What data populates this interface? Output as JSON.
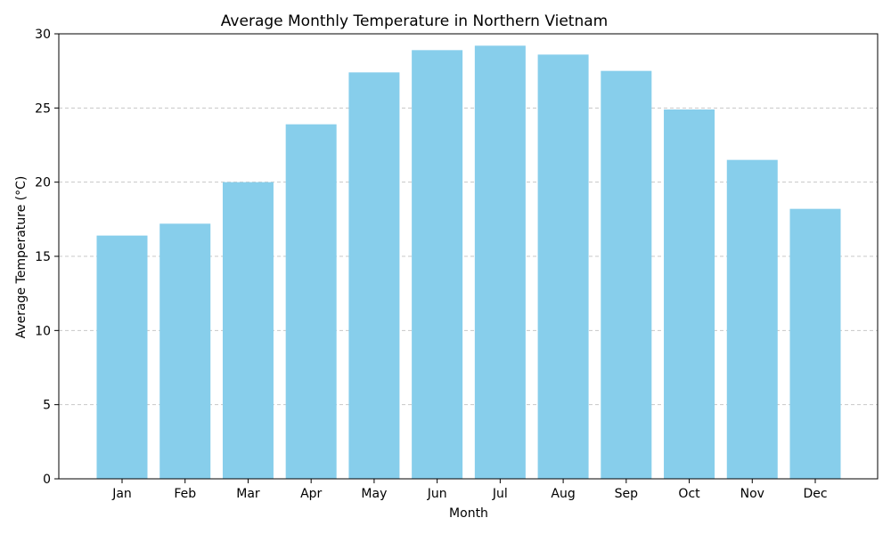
{
  "chart_data": {
    "type": "bar",
    "title": "Average Monthly Temperature in Northern Vietnam",
    "xlabel": "Month",
    "ylabel": "Average Temperature (°C)",
    "categories": [
      "Jan",
      "Feb",
      "Mar",
      "Apr",
      "May",
      "Jun",
      "Jul",
      "Aug",
      "Sep",
      "Oct",
      "Nov",
      "Dec"
    ],
    "values": [
      16.4,
      17.2,
      20.0,
      23.9,
      27.4,
      28.9,
      29.2,
      28.6,
      27.5,
      24.9,
      21.5,
      18.2
    ],
    "ylim": [
      0,
      30
    ],
    "yticks": [
      0,
      5,
      10,
      15,
      20,
      25,
      30
    ],
    "grid": "y-dashed",
    "bar_color": "#87ceeb"
  }
}
